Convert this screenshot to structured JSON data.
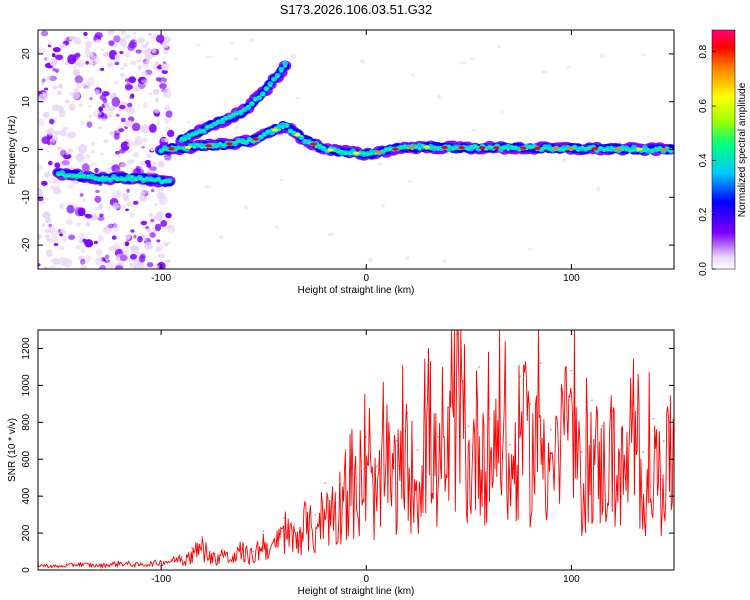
{
  "figure_title": "S173.2026.106.03.51.G32",
  "chart_data": [
    {
      "type": "heatmap",
      "title": "",
      "xlabel": "Height of straight line (km)",
      "ylabel": "Frequency (Hz)",
      "xlim": [
        -160,
        150
      ],
      "ylim": [
        -25,
        25
      ],
      "xticks": [
        -100,
        0,
        100
      ],
      "yticks": [
        -20,
        -10,
        0,
        10,
        20
      ],
      "colorbar": {
        "label": "Normalized spectral amplitude",
        "range": [
          0.0,
          0.88
        ],
        "ticks": [
          "0.0",
          "0.2",
          "0.4",
          "0.6",
          "0.8"
        ],
        "colormap": [
          "#ffffff",
          "#e9d5f5",
          "#8000ff",
          "#0000ff",
          "#00c8ff",
          "#00ff80",
          "#a0ff00",
          "#ffff00",
          "#ff8000",
          "#ff0000",
          "#ff0080"
        ]
      },
      "features": [
        {
          "name": "main-trace",
          "points": [
            [
              -100,
              0
            ],
            [
              -70,
              1
            ],
            [
              -55,
              2
            ],
            [
              -45,
              4
            ],
            [
              -40,
              5
            ],
            [
              -30,
              2
            ],
            [
              -20,
              0
            ],
            [
              0,
              -1
            ],
            [
              20,
              0.5
            ],
            [
              100,
              0.2
            ],
            [
              150,
              0
            ]
          ]
        },
        {
          "name": "upper-branch",
          "points": [
            [
              -90,
              2
            ],
            [
              -75,
              5
            ],
            [
              -60,
              8
            ],
            [
              -50,
              12
            ],
            [
              -42,
              16
            ],
            [
              -38,
              19
            ]
          ]
        },
        {
          "name": "low-trace",
          "points": [
            [
              -150,
              -5
            ],
            [
              -130,
              -6
            ],
            [
              -110,
              -6
            ],
            [
              -95,
              -7
            ]
          ]
        }
      ]
    },
    {
      "type": "line",
      "title": "",
      "xlabel": "Height of straight line (km)",
      "ylabel": "SNR (10 * v/v)",
      "xlim": [
        -160,
        150
      ],
      "ylim": [
        0,
        1300
      ],
      "xticks": [
        -100,
        0,
        100
      ],
      "yticks": [
        0,
        200,
        400,
        600,
        800,
        1000,
        1200
      ],
      "color": "#ff0000",
      "series": [
        {
          "name": "SNR",
          "x": [
            -160,
            -150,
            -140,
            -130,
            -120,
            -110,
            -100,
            -95,
            -90,
            -85,
            -80,
            -75,
            -70,
            -65,
            -60,
            -55,
            -50,
            -45,
            -40,
            -35,
            -30,
            -25,
            -20,
            -15,
            -10,
            -5,
            0,
            5,
            10,
            15,
            20,
            25,
            30,
            35,
            40,
            45,
            50,
            55,
            60,
            65,
            70,
            75,
            80,
            85,
            90,
            95,
            100,
            105,
            110,
            115,
            120,
            125,
            130,
            135,
            140,
            145,
            150
          ],
          "y": [
            30,
            20,
            35,
            25,
            40,
            30,
            45,
            55,
            70,
            120,
            180,
            90,
            110,
            80,
            140,
            100,
            210,
            160,
            280,
            250,
            350,
            300,
            470,
            420,
            650,
            500,
            720,
            560,
            780,
            700,
            850,
            650,
            1180,
            720,
            880,
            1280,
            780,
            1100,
            820,
            1250,
            680,
            1050,
            900,
            1120,
            760,
            980,
            1080,
            640,
            920,
            780,
            860,
            740,
            900,
            640,
            820,
            700,
            980
          ]
        }
      ]
    }
  ]
}
